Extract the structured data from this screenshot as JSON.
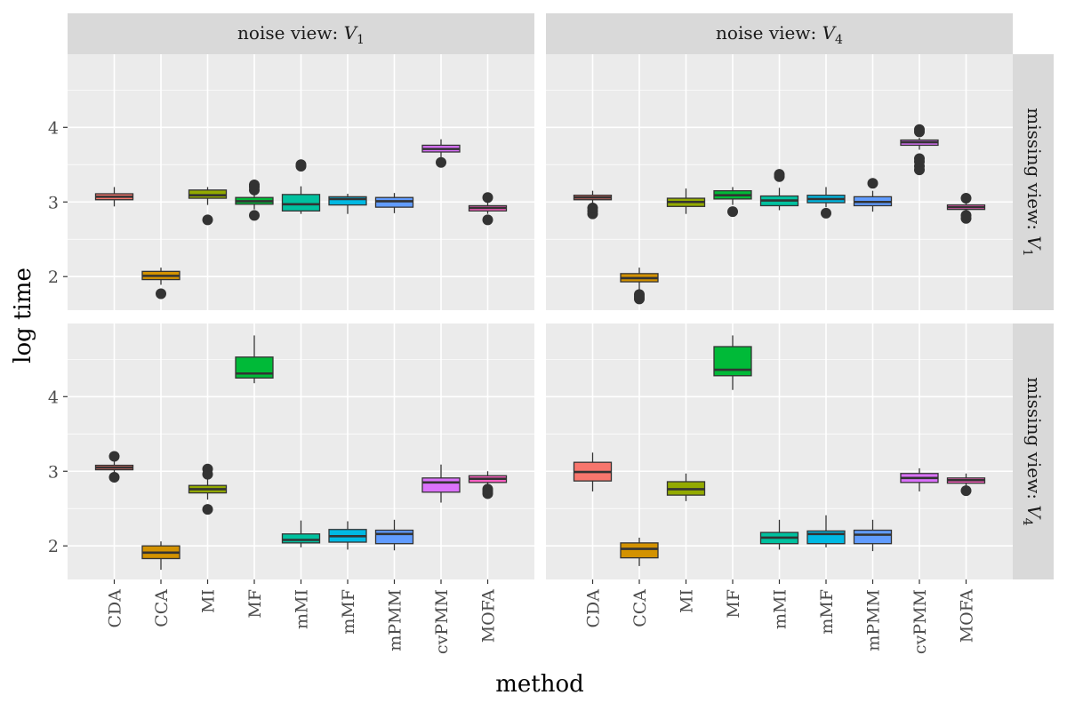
{
  "chart_data": {
    "type": "boxplot",
    "xlabel": "method",
    "ylabel": "log time",
    "categories": [
      "CDA",
      "CCA",
      "MI",
      "MF",
      "mMI",
      "mMF",
      "mPMM",
      "cvPMM",
      "MOFA"
    ],
    "colors": [
      "#F8766D",
      "#D39200",
      "#93AA00",
      "#00BA38",
      "#00C19F",
      "#00B9E3",
      "#619CFF",
      "#DB72FB",
      "#FF61C3"
    ],
    "y_ticks": [
      2,
      3,
      4
    ],
    "ylim": [
      1.55,
      4.98
    ],
    "facet_columns": [
      {
        "prefix": "noise view: ",
        "var": "V",
        "sub": "1"
      },
      {
        "prefix": "noise view: ",
        "var": "V",
        "sub": "4"
      }
    ],
    "facet_rows": [
      {
        "prefix": "missing view: ",
        "var": "V",
        "sub": "1"
      },
      {
        "prefix": "missing view: ",
        "var": "V",
        "sub": "4"
      }
    ],
    "panels": [
      {
        "row": 0,
        "col": 0,
        "boxes": [
          {
            "low": 2.94,
            "q1": 3.03,
            "median": 3.07,
            "q3": 3.11,
            "high": 3.2,
            "outliers": []
          },
          {
            "low": 1.89,
            "q1": 1.96,
            "median": 2.01,
            "q3": 2.07,
            "high": 2.12,
            "outliers": [
              1.77
            ]
          },
          {
            "low": 2.96,
            "q1": 3.05,
            "median": 3.09,
            "q3": 3.16,
            "high": 3.2,
            "outliers": [
              2.76
            ]
          },
          {
            "low": 2.9,
            "q1": 2.97,
            "median": 3.01,
            "q3": 3.06,
            "high": 3.14,
            "outliers": [
              2.82,
              3.16,
              3.2,
              3.23
            ]
          },
          {
            "low": 2.84,
            "q1": 2.88,
            "median": 2.97,
            "q3": 3.1,
            "high": 3.21,
            "outliers": [
              3.48,
              3.5
            ]
          },
          {
            "low": 2.84,
            "q1": 2.96,
            "median": 3.04,
            "q3": 3.07,
            "high": 3.11,
            "outliers": []
          },
          {
            "low": 2.85,
            "q1": 2.93,
            "median": 3.01,
            "q3": 3.06,
            "high": 3.12,
            "outliers": []
          },
          {
            "low": 3.6,
            "q1": 3.67,
            "median": 3.71,
            "q3": 3.76,
            "high": 3.84,
            "outliers": [
              3.53
            ]
          },
          {
            "low": 2.84,
            "q1": 2.88,
            "median": 2.92,
            "q3": 2.95,
            "high": 3.0,
            "outliers": [
              2.76,
              3.06
            ]
          }
        ]
      },
      {
        "row": 0,
        "col": 1,
        "boxes": [
          {
            "low": 2.97,
            "q1": 3.03,
            "median": 3.06,
            "q3": 3.09,
            "high": 3.15,
            "outliers": [
              2.84,
              2.88,
              2.92
            ]
          },
          {
            "low": 1.82,
            "q1": 1.93,
            "median": 1.98,
            "q3": 2.04,
            "high": 2.12,
            "outliers": [
              1.7,
              1.73,
              1.76
            ]
          },
          {
            "low": 2.84,
            "q1": 2.94,
            "median": 3.0,
            "q3": 3.05,
            "high": 3.18,
            "outliers": []
          },
          {
            "low": 2.96,
            "q1": 3.04,
            "median": 3.09,
            "q3": 3.15,
            "high": 3.2,
            "outliers": [
              2.87
            ]
          },
          {
            "low": 2.89,
            "q1": 2.95,
            "median": 3.02,
            "q3": 3.08,
            "high": 3.19,
            "outliers": [
              3.34,
              3.37
            ]
          },
          {
            "low": 2.93,
            "q1": 2.99,
            "median": 3.04,
            "q3": 3.09,
            "high": 3.2,
            "outliers": [
              2.85
            ]
          },
          {
            "low": 2.87,
            "q1": 2.95,
            "median": 3.0,
            "q3": 3.07,
            "high": 3.15,
            "outliers": [
              3.25
            ]
          },
          {
            "low": 3.7,
            "q1": 3.76,
            "median": 3.8,
            "q3": 3.83,
            "high": 3.86,
            "outliers": [
              3.43,
              3.48,
              3.54,
              3.58,
              3.94,
              3.97
            ]
          },
          {
            "low": 2.86,
            "q1": 2.9,
            "median": 2.93,
            "q3": 2.96,
            "high": 3.0,
            "outliers": [
              2.78,
              2.82,
              3.05
            ]
          }
        ]
      },
      {
        "row": 1,
        "col": 0,
        "boxes": [
          {
            "low": 2.97,
            "q1": 3.02,
            "median": 3.05,
            "q3": 3.08,
            "high": 3.14,
            "outliers": [
              2.92,
              3.2
            ]
          },
          {
            "low": 1.68,
            "q1": 1.83,
            "median": 1.91,
            "q3": 2.0,
            "high": 2.06,
            "outliers": []
          },
          {
            "low": 2.62,
            "q1": 2.71,
            "median": 2.76,
            "q3": 2.81,
            "high": 2.9,
            "outliers": [
              2.49,
              2.96,
              3.03
            ]
          },
          {
            "low": 4.18,
            "q1": 4.25,
            "median": 4.31,
            "q3": 4.53,
            "high": 4.82,
            "outliers": []
          },
          {
            "low": 1.98,
            "q1": 2.04,
            "median": 2.08,
            "q3": 2.16,
            "high": 2.34,
            "outliers": []
          },
          {
            "low": 1.95,
            "q1": 2.05,
            "median": 2.13,
            "q3": 2.22,
            "high": 2.33,
            "outliers": []
          },
          {
            "low": 1.94,
            "q1": 2.03,
            "median": 2.16,
            "q3": 2.21,
            "high": 2.35,
            "outliers": []
          },
          {
            "low": 2.58,
            "q1": 2.72,
            "median": 2.85,
            "q3": 2.91,
            "high": 3.09,
            "outliers": []
          },
          {
            "low": 2.78,
            "q1": 2.85,
            "median": 2.9,
            "q3": 2.94,
            "high": 3.0,
            "outliers": [
              2.7,
              2.73,
              2.76
            ]
          }
        ]
      },
      {
        "row": 1,
        "col": 1,
        "boxes": [
          {
            "low": 2.73,
            "q1": 2.87,
            "median": 2.99,
            "q3": 3.12,
            "high": 3.25,
            "outliers": []
          },
          {
            "low": 1.73,
            "q1": 1.84,
            "median": 1.96,
            "q3": 2.04,
            "high": 2.11,
            "outliers": []
          },
          {
            "low": 2.6,
            "q1": 2.68,
            "median": 2.76,
            "q3": 2.86,
            "high": 2.97,
            "outliers": []
          },
          {
            "low": 4.09,
            "q1": 4.28,
            "median": 4.36,
            "q3": 4.67,
            "high": 4.82,
            "outliers": []
          },
          {
            "low": 1.95,
            "q1": 2.03,
            "median": 2.11,
            "q3": 2.18,
            "high": 2.35,
            "outliers": []
          },
          {
            "low": 1.98,
            "q1": 2.03,
            "median": 2.16,
            "q3": 2.2,
            "high": 2.41,
            "outliers": []
          },
          {
            "low": 1.93,
            "q1": 2.03,
            "median": 2.15,
            "q3": 2.21,
            "high": 2.35,
            "outliers": []
          },
          {
            "low": 2.73,
            "q1": 2.85,
            "median": 2.91,
            "q3": 2.97,
            "high": 3.04,
            "outliers": []
          },
          {
            "low": 2.8,
            "q1": 2.84,
            "median": 2.88,
            "q3": 2.91,
            "high": 2.97,
            "outliers": [
              2.74
            ]
          }
        ]
      }
    ]
  }
}
